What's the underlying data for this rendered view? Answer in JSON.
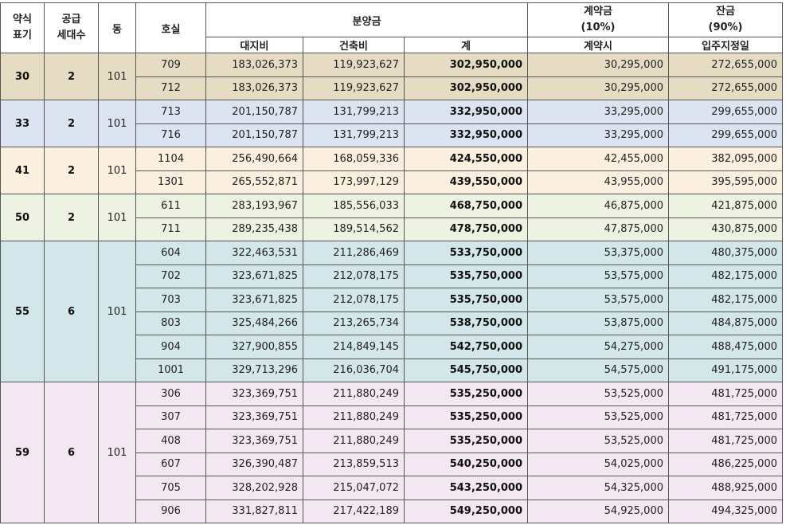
{
  "header": {
    "type_label": "약식\n표기",
    "supply_label": "공급\n세대수",
    "dong_label": "동",
    "unit_label": "호실",
    "sale_price_label": "분양금",
    "land_label": "대지비",
    "building_label": "건축비",
    "total_label": "계",
    "deposit_label": "계약금\n(10%)",
    "deposit_when": "계약시",
    "balance_label": "잔금\n(90%)",
    "balance_when": "입주지정일"
  },
  "groups": [
    {
      "type": "30",
      "supply": "2",
      "dong": "101",
      "rows": [
        {
          "unit": "709",
          "land": "183,026,373",
          "building": "119,923,627",
          "total": "302,950,000",
          "deposit": "30,295,000",
          "balance": "272,655,000"
        },
        {
          "unit": "712",
          "land": "183,026,373",
          "building": "119,923,627",
          "total": "302,950,000",
          "deposit": "30,295,000",
          "balance": "272,655,000"
        }
      ]
    },
    {
      "type": "33",
      "supply": "2",
      "dong": "101",
      "rows": [
        {
          "unit": "713",
          "land": "201,150,787",
          "building": "131,799,213",
          "total": "332,950,000",
          "deposit": "33,295,000",
          "balance": "299,655,000"
        },
        {
          "unit": "716",
          "land": "201,150,787",
          "building": "131,799,213",
          "total": "332,950,000",
          "deposit": "33,295,000",
          "balance": "299,655,000"
        }
      ]
    },
    {
      "type": "41",
      "supply": "2",
      "dong": "101",
      "rows": [
        {
          "unit": "1104",
          "land": "256,490,664",
          "building": "168,059,336",
          "total": "424,550,000",
          "deposit": "42,455,000",
          "balance": "382,095,000"
        },
        {
          "unit": "1301",
          "land": "265,552,871",
          "building": "173,997,129",
          "total": "439,550,000",
          "deposit": "43,955,000",
          "balance": "395,595,000"
        }
      ]
    },
    {
      "type": "50",
      "supply": "2",
      "dong": "101",
      "rows": [
        {
          "unit": "611",
          "land": "283,193,967",
          "building": "185,556,033",
          "total": "468,750,000",
          "deposit": "46,875,000",
          "balance": "421,875,000"
        },
        {
          "unit": "711",
          "land": "289,235,438",
          "building": "189,514,562",
          "total": "478,750,000",
          "deposit": "47,875,000",
          "balance": "430,875,000"
        }
      ]
    },
    {
      "type": "55",
      "supply": "6",
      "dong": "101",
      "rows": [
        {
          "unit": "604",
          "land": "322,463,531",
          "building": "211,286,469",
          "total": "533,750,000",
          "deposit": "53,375,000",
          "balance": "480,375,000"
        },
        {
          "unit": "702",
          "land": "323,671,825",
          "building": "212,078,175",
          "total": "535,750,000",
          "deposit": "53,575,000",
          "balance": "482,175,000"
        },
        {
          "unit": "703",
          "land": "323,671,825",
          "building": "212,078,175",
          "total": "535,750,000",
          "deposit": "53,575,000",
          "balance": "482,175,000"
        },
        {
          "unit": "803",
          "land": "325,484,266",
          "building": "213,265,734",
          "total": "538,750,000",
          "deposit": "53,875,000",
          "balance": "484,875,000"
        },
        {
          "unit": "904",
          "land": "327,900,855",
          "building": "214,849,145",
          "total": "542,750,000",
          "deposit": "54,275,000",
          "balance": "488,475,000"
        },
        {
          "unit": "1001",
          "land": "329,713,296",
          "building": "216,036,704",
          "total": "545,750,000",
          "deposit": "54,575,000",
          "balance": "491,175,000"
        }
      ]
    },
    {
      "type": "59",
      "supply": "6",
      "dong": "101",
      "rows": [
        {
          "unit": "306",
          "land": "323,369,751",
          "building": "211,880,249",
          "total": "535,250,000",
          "deposit": "53,525,000",
          "balance": "481,725,000"
        },
        {
          "unit": "307",
          "land": "323,369,751",
          "building": "211,880,249",
          "total": "535,250,000",
          "deposit": "53,525,000",
          "balance": "481,725,000"
        },
        {
          "unit": "408",
          "land": "323,369,751",
          "building": "211,880,249",
          "total": "535,250,000",
          "deposit": "53,525,000",
          "balance": "481,725,000"
        },
        {
          "unit": "607",
          "land": "326,390,487",
          "building": "213,859,513",
          "total": "540,250,000",
          "deposit": "54,025,000",
          "balance": "486,225,000"
        },
        {
          "unit": "705",
          "land": "328,202,928",
          "building": "215,047,072",
          "total": "543,250,000",
          "deposit": "54,325,000",
          "balance": "488,925,000"
        },
        {
          "unit": "906",
          "land": "331,827,811",
          "building": "217,422,189",
          "total": "549,250,000",
          "deposit": "54,925,000",
          "balance": "494,325,000"
        }
      ]
    }
  ]
}
